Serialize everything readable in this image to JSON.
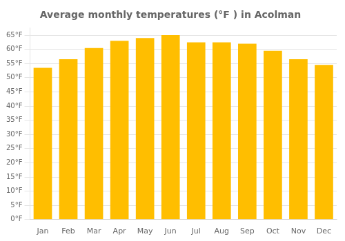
{
  "chart_data": {
    "type": "bar",
    "title": "Average monthly temperatures (°F ) in Acolman",
    "categories": [
      "Jan",
      "Feb",
      "Mar",
      "Apr",
      "May",
      "Jun",
      "Jul",
      "Aug",
      "Sep",
      "Oct",
      "Nov",
      "Dec"
    ],
    "values": [
      53.5,
      56.5,
      60.5,
      63.0,
      64.0,
      65.0,
      62.5,
      62.5,
      62.0,
      59.5,
      56.5,
      54.5
    ],
    "color": "#FFBE00",
    "ylim": [
      0,
      67.5
    ],
    "yticks": [
      {
        "value": 0,
        "label": "0°F"
      },
      {
        "value": 5,
        "label": "5°F"
      },
      {
        "value": 10,
        "label": "10°F"
      },
      {
        "value": 15,
        "label": "15°F"
      },
      {
        "value": 20,
        "label": "20°F"
      },
      {
        "value": 25,
        "label": "25°F"
      },
      {
        "value": 30,
        "label": "30°F"
      },
      {
        "value": 35,
        "label": "35°F"
      },
      {
        "value": 40,
        "label": "40°F"
      },
      {
        "value": 45,
        "label": "45°F"
      },
      {
        "value": 50,
        "label": "50°F"
      },
      {
        "value": 55,
        "label": "55°F"
      },
      {
        "value": 60,
        "label": "60°F"
      },
      {
        "value": 65,
        "label": "65°F"
      }
    ],
    "grid": true
  }
}
